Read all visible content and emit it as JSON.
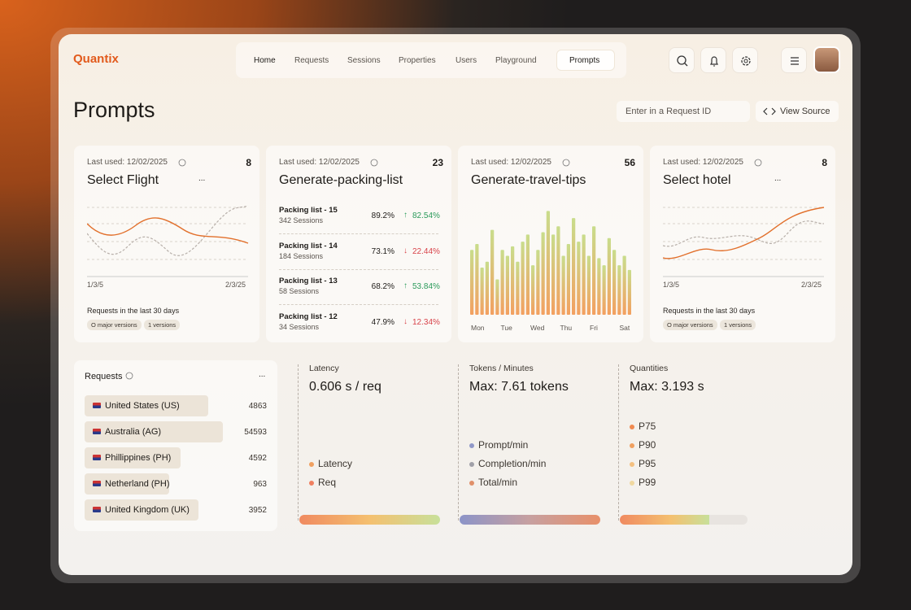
{
  "header": {
    "logo": "Quantix",
    "nav": [
      "Home",
      "Requests",
      "Sessions",
      "Properties",
      "Users",
      "Playground",
      "Prompts"
    ],
    "active": 6
  },
  "page": {
    "title": "Prompts",
    "search_placeholder": "Enter in a Request ID",
    "view_source": "View Source"
  },
  "cards": [
    {
      "last_used": "Last used: 12/02/2025",
      "count": "8",
      "title": "Select Flight",
      "menu": "...",
      "x_labels": [
        "1/3/5",
        "2/3/25"
      ],
      "caption": "Requests in the last 30 days",
      "tags": [
        "O major versions",
        "1 versions"
      ]
    },
    {
      "last_used": "Last used: 12/02/2025",
      "count": "23",
      "title": "Generate-packing-list",
      "rows": [
        {
          "name": "Packing list - 15",
          "sessions": "342 Sessions",
          "pct": "89.2%",
          "change": "82.54%",
          "trend": "up"
        },
        {
          "name": "Packing list - 14",
          "sessions": "184 Sessions",
          "pct": "73.1%",
          "change": "22.44%",
          "trend": "down"
        },
        {
          "name": "Packing list - 13",
          "sessions": "58 Sessions",
          "pct": "68.2%",
          "change": "53.84%",
          "trend": "up"
        },
        {
          "name": "Packing list - 12",
          "sessions": "34 Sessions",
          "pct": "47.9%",
          "change": "12.34%",
          "trend": "down"
        }
      ]
    },
    {
      "last_used": "Last used: 12/02/2025",
      "count": "56",
      "title": "Generate-travel-tips",
      "days": [
        "Mon",
        "Tue",
        "Wed",
        "Thu",
        "Fri",
        "Sat"
      ],
      "bars": [
        55,
        60,
        40,
        45,
        72,
        30,
        55,
        50,
        58,
        45,
        62,
        68,
        42,
        55,
        70,
        88,
        68,
        75,
        50,
        60,
        82,
        62,
        68,
        50,
        75,
        48,
        42,
        65,
        55,
        42,
        50,
        38
      ]
    },
    {
      "last_used": "Last used: 12/02/2025",
      "count": "8",
      "title": "Select hotel",
      "menu": "...",
      "x_labels": [
        "1/3/5",
        "2/3/25"
      ],
      "caption": "Requests in the last 30 days",
      "tags": [
        "O major versions",
        "1 versions"
      ]
    }
  ],
  "requests": {
    "title": "Requests",
    "menu": "...",
    "rows": [
      {
        "country": "United States (US)",
        "count": "4863"
      },
      {
        "country": "Australia (AG)",
        "count": "54593"
      },
      {
        "country": "Phillippines (PH)",
        "count": "4592"
      },
      {
        "country": "Netherland (PH)",
        "count": "963"
      },
      {
        "country": "United Kingdom (UK)",
        "count": "3952"
      }
    ]
  },
  "metrics": [
    {
      "label": "Latency",
      "value": "0.606 s / req",
      "legend": [
        "Latency",
        "Req"
      ]
    },
    {
      "label": "Tokens / Minutes",
      "value": "Max: 7.61 tokens",
      "legend": [
        "Prompt/min",
        "Completion/min",
        "Total/min"
      ]
    },
    {
      "label": "Quantities",
      "value": "Max: 3.193 s",
      "legend": [
        "P75",
        "P90",
        "P95",
        "P99"
      ]
    }
  ]
}
